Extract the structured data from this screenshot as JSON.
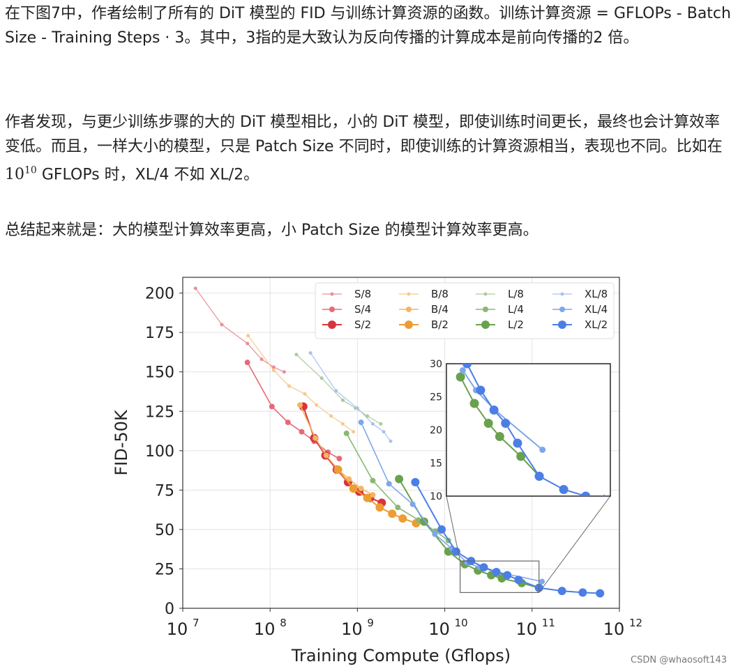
{
  "article": {
    "p1": "在下图7中，作者绘制了所有的 DiT 模型的 FID 与训练计算资源的函数。训练计算资源 = GFLOPs - Batch Size - Training Steps · 3。其中，3指的是大致认为反向传播的计算成本是前向传播的2 倍。",
    "p2a": "作者发现，与更少训练步骤的大的 DiT 模型相比，小的 DiT 模型，即使训练时间更长，最终也会计算效率变低。而且，一样大小的模型，只是 Patch Size 不同时，即使训练的计算资源相当，表现也不同。比如在 ",
    "p2_base": "10",
    "p2_exp": "10",
    "p2b": " GFLOPs 时，XL/4 不如 XL/2。",
    "p3": "总结起来就是：大的模型计算效率更高，小 Patch Size 的模型计算效率更高。"
  },
  "watermark": "CSDN @whaosoft143",
  "chart_data": {
    "type": "line",
    "xlabel": "Training Compute (Gflops)",
    "ylabel": "FID-50K",
    "xscale": "log",
    "xlim": [
      10000000.0,
      1000000000000.0
    ],
    "ylim": [
      0,
      210
    ],
    "xticks": [
      10000000.0,
      100000000.0,
      1000000000.0,
      10000000000.0,
      100000000000.0,
      1000000000000.0
    ],
    "xtick_labels": [
      {
        "base": "10",
        "exp": "7"
      },
      {
        "base": "10",
        "exp": "8"
      },
      {
        "base": "10",
        "exp": "9"
      },
      {
        "base": "10",
        "exp": "10"
      },
      {
        "base": "10",
        "exp": "11"
      },
      {
        "base": "10",
        "exp": "12"
      }
    ],
    "yticks": [
      0,
      25,
      50,
      75,
      100,
      125,
      150,
      175,
      200
    ],
    "grid": true,
    "legend_position": "top-right",
    "series": [
      {
        "name": "S/8",
        "color": "#e88f96",
        "marker_size": 1,
        "x": [
          14000000.0,
          28000000.0,
          55000000.0,
          80000000.0,
          110000000.0,
          145000000.0
        ],
        "y": [
          203,
          180,
          168,
          158,
          153,
          150
        ]
      },
      {
        "name": "S/4",
        "color": "#e56a78",
        "marker_size": 2,
        "x": [
          55000000.0,
          105000000.0,
          160000000.0,
          230000000.0,
          320000000.0,
          460000000.0,
          620000000.0
        ],
        "y": [
          156,
          128,
          118,
          112,
          106,
          99,
          95
        ]
      },
      {
        "name": "S/2",
        "color": "#d9343e",
        "marker_size": 3,
        "x": [
          240000000.0,
          320000000.0,
          430000000.0,
          580000000.0,
          780000000.0,
          1050000000.0,
          1400000000.0,
          1900000000.0
        ],
        "y": [
          128,
          108,
          97,
          88,
          80,
          74,
          70,
          67
        ]
      },
      {
        "name": "B/8",
        "color": "#f5c98d",
        "marker_size": 1,
        "x": [
          56000000.0,
          110000000.0,
          165000000.0,
          250000000.0,
          340000000.0,
          500000000.0,
          680000000.0,
          900000000.0
        ],
        "y": [
          173,
          151,
          141,
          136,
          129,
          122,
          117,
          112
        ]
      },
      {
        "name": "B/4",
        "color": "#f2b564",
        "marker_size": 2,
        "x": [
          220000000.0,
          330000000.0,
          440000000.0,
          600000000.0,
          800000000.0,
          1100000000.0,
          1500000000.0
        ],
        "y": [
          129,
          108,
          97,
          88,
          82,
          76,
          72
        ]
      },
      {
        "name": "B/2",
        "color": "#ed9d32",
        "marker_size": 3,
        "x": [
          600000000.0,
          900000000.0,
          1300000000.0,
          1800000000.0,
          2500000000.0,
          3300000000.0,
          4700000000.0
        ],
        "y": [
          88,
          76,
          70,
          64,
          60,
          57,
          54
        ]
      },
      {
        "name": "L/8",
        "color": "#aec99e",
        "marker_size": 1,
        "x": [
          200000000.0,
          390000000.0,
          680000000.0,
          950000000.0,
          1300000000.0,
          1850000000.0
        ],
        "y": [
          161,
          146,
          132,
          127,
          122,
          117
        ]
      },
      {
        "name": "L/4",
        "color": "#8ab874",
        "marker_size": 2,
        "x": [
          750000000.0,
          1500000000.0,
          2900000000.0,
          5000000000.0,
          7800000000.0,
          11000000000.0
        ],
        "y": [
          111,
          81,
          64,
          56,
          49,
          43
        ]
      },
      {
        "name": "L/2",
        "color": "#6aa14e",
        "marker_size": 3,
        "x": [
          3000000000.0,
          5800000000.0,
          11000000000.0,
          17000000000.0,
          24000000000.0,
          34000000000.0,
          45000000000.0,
          76000000000.0,
          120000000000.0
        ],
        "y": [
          82,
          55,
          36,
          28,
          24,
          21,
          19,
          16,
          13
        ]
      },
      {
        "name": "XL/8",
        "color": "#a6c3ef",
        "marker_size": 1,
        "x": [
          290000000.0,
          570000000.0,
          1000000000.0,
          1500000000.0,
          2000000000.0,
          2400000000.0
        ],
        "y": [
          162,
          138,
          127,
          117,
          112,
          106
        ]
      },
      {
        "name": "XL/4",
        "color": "#7ea6eb",
        "marker_size": 2,
        "x": [
          1100000000.0,
          2300000000.0,
          4300000000.0,
          7700000000.0,
          12000000000.0,
          18000000000.0,
          25000000000.0,
          40000000000.0,
          130000000000.0
        ],
        "y": [
          118,
          79,
          66,
          47,
          38,
          29,
          26,
          23,
          17
        ]
      },
      {
        "name": "XL/2",
        "color": "#4c7ee6",
        "marker_size": 3,
        "x": [
          4600000000.0,
          9200000000.0,
          13500000000.0,
          20000000000.0,
          28000000000.0,
          39000000000.0,
          52000000000.0,
          70000000000.0,
          120000000000.0,
          220000000000.0,
          380000000000.0,
          600000000000.0
        ],
        "y": [
          80,
          50,
          36,
          30,
          26,
          23,
          21,
          18,
          13,
          11,
          10,
          9.5
        ]
      }
    ],
    "inset": {
      "xlim": [
        12000000000.0,
        700000000000.0
      ],
      "ylim": [
        10,
        30
      ],
      "yticks": [
        10,
        15,
        20,
        25,
        30
      ],
      "zoom_box": {
        "x": [
          15000000000.0,
          120000000000.0
        ],
        "y": [
          10,
          30
        ]
      }
    }
  }
}
